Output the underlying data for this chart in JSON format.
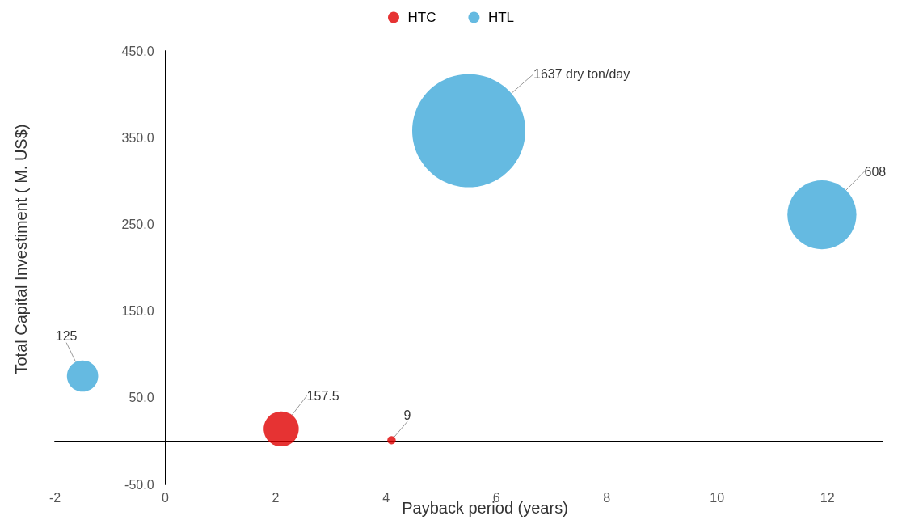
{
  "chart_data": {
    "type": "bubble",
    "xlabel": "Payback period (years)",
    "ylabel": "Total Capital Investiment ( M. US$)",
    "xlim": [
      -2,
      13
    ],
    "xticks": [
      -2,
      0,
      2,
      4,
      6,
      8,
      10,
      12
    ],
    "ylim": [
      -50,
      450
    ],
    "yticks": [
      {
        "value": -50,
        "label": "-50.0"
      },
      {
        "value": 50,
        "label": "50.0"
      },
      {
        "value": 150,
        "label": "150.0"
      },
      {
        "value": 250,
        "label": "250.0"
      },
      {
        "value": 350,
        "label": "350.0"
      },
      {
        "value": 450,
        "label": "450.0"
      }
    ],
    "grid": false,
    "legend": "top",
    "series": [
      {
        "name": "HTC",
        "color": "#e00000",
        "x": [
          2.1,
          4.1
        ],
        "values": [
          14,
          1
        ],
        "sizes": [
          157.5,
          9
        ],
        "value_labels": [
          "157.5",
          "9"
        ]
      },
      {
        "name": "HTL",
        "color": "#3fa9d9",
        "x": [
          -1.5,
          5.5,
          11.9
        ],
        "values": [
          75,
          358,
          261
        ],
        "sizes": [
          125,
          1637,
          608
        ],
        "value_labels": [
          "125",
          "1637 dry ton/day",
          "608"
        ]
      }
    ]
  }
}
